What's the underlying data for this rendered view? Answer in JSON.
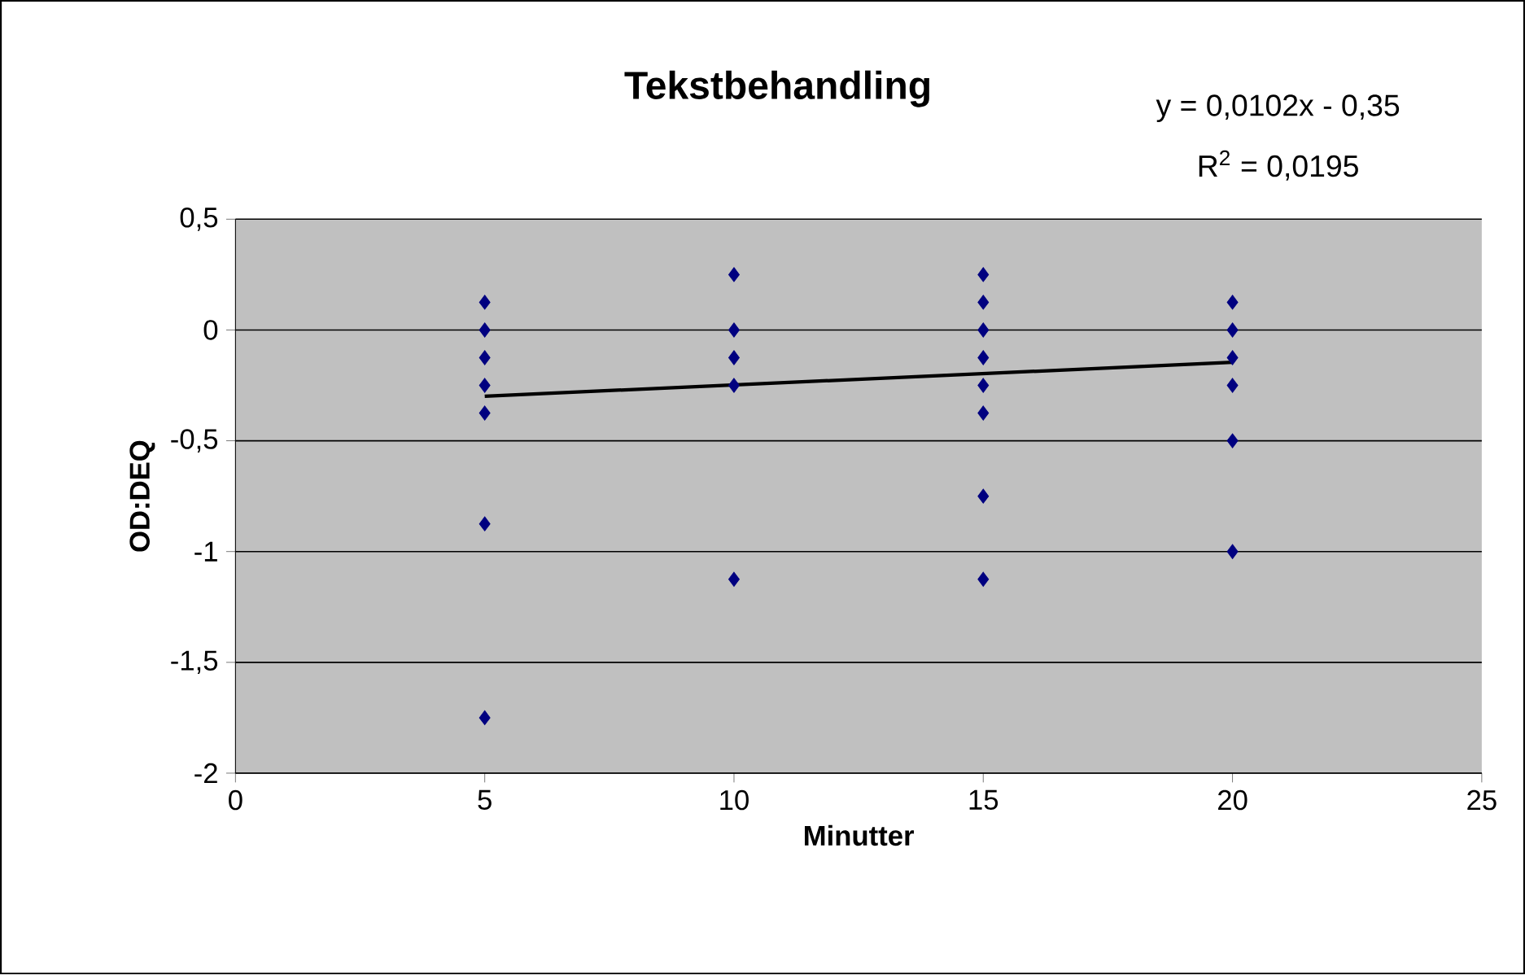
{
  "chart_data": {
    "type": "scatter",
    "title": "Tekstbehandling",
    "xlabel": "Minutter",
    "ylabel": "OD:DEQ",
    "annotations": [
      "y = 0,0102x - 0,35",
      "R$^{2}$ = 0,0195"
    ],
    "series": [
      {
        "color": "#000080",
        "marker": "diamond",
        "x": [
          5,
          5,
          5,
          5,
          5,
          5,
          5,
          10,
          10,
          10,
          10,
          10,
          15,
          15,
          15,
          15,
          15,
          15,
          15,
          15,
          20,
          20,
          20,
          20,
          20,
          20
        ],
        "values": [
          0.125,
          0,
          -0.125,
          -0.25,
          -0.375,
          -0.875,
          -1.75,
          0.25,
          0,
          -0.125,
          -0.25,
          -1.125,
          0.25,
          0.125,
          0,
          -0.125,
          -0.25,
          -0.375,
          -0.75,
          -1.125,
          0.125,
          0,
          -0.125,
          -0.25,
          -0.5,
          -1.0
        ]
      },
      {
        "type": "line",
        "color": "#000000",
        "marker": "none",
        "line_style": "solid",
        "x": [
          5,
          20
        ],
        "values": [
          -0.299,
          -0.146
        ]
      }
    ],
    "xlim": [
      0,
      25
    ],
    "ylim": [
      -2,
      0.5
    ],
    "xticks": [
      0,
      5,
      10,
      15,
      20,
      25
    ],
    "yticks": [
      {
        "value": 0.5,
        "label": "0,5"
      },
      0,
      {
        "value": -0.5,
        "label": "-0,5"
      },
      -1,
      {
        "value": -1.5,
        "label": "-1,5"
      },
      -2
    ],
    "grid": "y"
  }
}
